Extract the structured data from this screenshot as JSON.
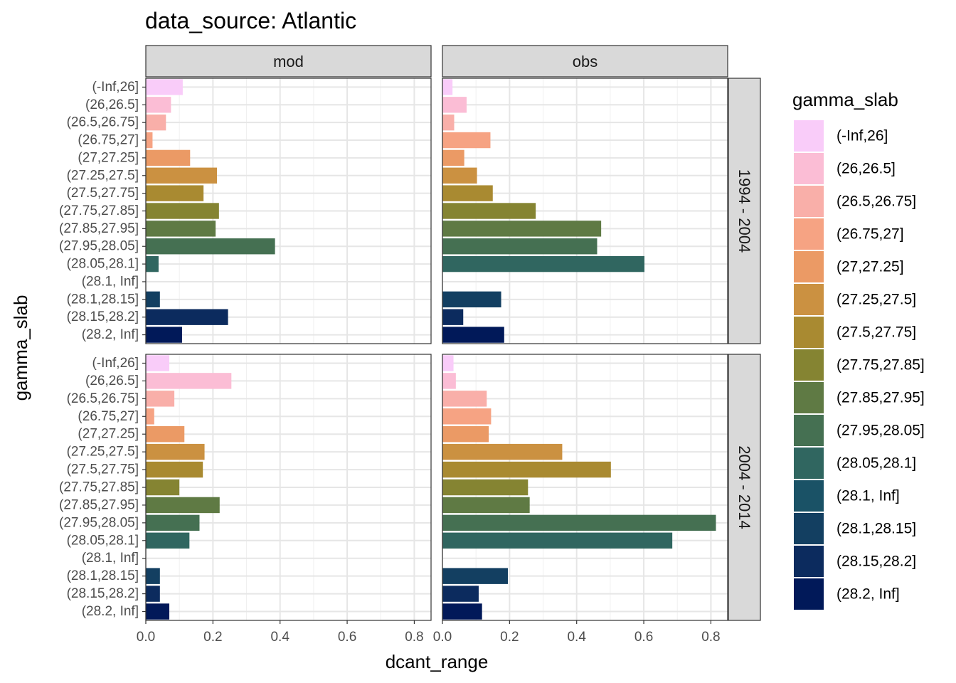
{
  "chart_data": {
    "type": "bar",
    "orientation": "horizontal",
    "title": "data_source: Atlantic",
    "xlabel": "dcant_range",
    "ylabel": "gamma_slab",
    "xlim": [
      0,
      0.85
    ],
    "x_ticks": [
      0.0,
      0.2,
      0.4,
      0.6,
      0.8
    ],
    "x_tick_labels": [
      "0.0",
      "0.2",
      "0.4",
      "0.6",
      "0.8"
    ],
    "grid": true,
    "legend_position": "right",
    "legend_title": "gamma_slab",
    "categories": [
      "(-Inf,26]",
      "(26,26.5]",
      "(26.5,26.75]",
      "(26.75,27]",
      "(27,27.25]",
      "(27.25,27.5]",
      "(27.5,27.75]",
      "(27.75,27.85]",
      "(27.85,27.95]",
      "(27.95,28.05]",
      "(28.05,28.1]",
      "(28.1, Inf]",
      "(28.1,28.15]",
      "(28.15,28.2]",
      "(28.2, Inf]"
    ],
    "colors": [
      "#F9CCF9",
      "#FBBDD5",
      "#F9AFA9",
      "#F6A383",
      "#EB9A65",
      "#CB9141",
      "#A98A31",
      "#858432",
      "#5F7A44",
      "#457052",
      "#306660",
      "#1A5266",
      "#133F61",
      "#0C2B5E",
      "#011959"
    ],
    "facet_columns": [
      "mod",
      "obs"
    ],
    "facet_rows": [
      "1994 - 2004",
      "2004 - 2014"
    ],
    "panels": [
      {
        "column": "mod",
        "row": "1994 - 2004",
        "values": [
          0.11,
          0.075,
          0.06,
          0.02,
          0.132,
          0.212,
          0.172,
          0.218,
          0.208,
          0.385,
          0.038,
          null,
          0.042,
          0.245,
          0.108
        ]
      },
      {
        "column": "obs",
        "row": "1994 - 2004",
        "values": [
          0.03,
          0.072,
          0.035,
          0.143,
          0.065,
          0.103,
          0.15,
          0.278,
          0.473,
          0.461,
          0.602,
          null,
          0.175,
          0.062,
          0.184
        ]
      },
      {
        "column": "mod",
        "row": "2004 - 2014",
        "values": [
          0.07,
          0.255,
          0.085,
          0.025,
          0.115,
          0.175,
          0.17,
          0.1,
          0.22,
          0.16,
          0.13,
          null,
          0.042,
          0.042,
          0.07
        ]
      },
      {
        "column": "obs",
        "row": "2004 - 2014",
        "values": [
          0.033,
          0.04,
          0.132,
          0.145,
          0.138,
          0.357,
          0.502,
          0.255,
          0.26,
          0.815,
          0.685,
          null,
          0.195,
          0.108,
          0.118
        ]
      }
    ]
  }
}
